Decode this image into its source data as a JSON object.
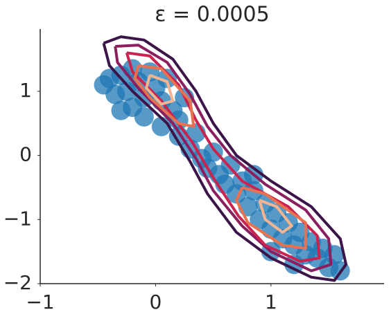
{
  "chart_data": {
    "type": "scatter",
    "title": "ε = 0.0005",
    "xlim": [
      -1,
      1.98
    ],
    "ylim": [
      -2,
      1.97
    ],
    "xticks": [
      {
        "value": -1,
        "label": "−1"
      },
      0,
      1
    ],
    "yticks": [
      {
        "value": -2,
        "label": "−2"
      },
      {
        "value": -1,
        "label": "−1"
      },
      0,
      1
    ],
    "color": "#1f77b4",
    "x": [
      -0.45,
      -0.4,
      -0.35,
      -0.3,
      -0.25,
      -0.2,
      -0.15,
      -0.1,
      -0.05,
      0,
      0.05,
      0.1,
      0.15,
      0.2,
      0.25,
      -0.3,
      -0.2,
      -0.1,
      0.05,
      0.2,
      0.3,
      0.35,
      0.4,
      0.45,
      0.5,
      0.55,
      0.6,
      0.65,
      0.7,
      0.75,
      0.8,
      0.85,
      0.9,
      0.95,
      1.0,
      1.05,
      1.1,
      1.15,
      1.2,
      1.25,
      1.3,
      1.35,
      1.4,
      1.45,
      1.5,
      1.55,
      1.6,
      0.85,
      1.0,
      1.2
    ],
    "values": [
      1.1,
      1.2,
      0.95,
      1.25,
      1.0,
      0.75,
      1.15,
      0.9,
      1.3,
      1.05,
      0.85,
      1.2,
      0.7,
      0.55,
      0.9,
      0.7,
      1.35,
      0.6,
      0.45,
      0.3,
      0.1,
      0.35,
      -0.05,
      -0.2,
      0.05,
      -0.3,
      -0.45,
      -0.15,
      -0.6,
      -0.4,
      -0.8,
      -0.55,
      -1.0,
      -0.75,
      -1.15,
      -0.9,
      -1.3,
      -1.05,
      -1.4,
      -1.2,
      -1.55,
      -1.35,
      -1.6,
      -1.45,
      -1.75,
      -1.55,
      -1.8,
      -0.3,
      -1.5,
      -1.7
    ],
    "contours": [
      {
        "color": "#3b1549",
        "x": [
          -0.45,
          -0.3,
          -0.1,
          0.15,
          0.35,
          0.5,
          0.7,
          1.0,
          1.35,
          1.6,
          1.65,
          1.55,
          1.35,
          1.0,
          0.7,
          0.45,
          0.3,
          0.1,
          -0.2,
          -0.4,
          -0.45
        ],
        "y": [
          1.75,
          1.85,
          1.8,
          1.5,
          1.0,
          0.5,
          0.0,
          -0.4,
          -0.8,
          -1.3,
          -1.7,
          -1.95,
          -1.9,
          -1.6,
          -1.2,
          -0.6,
          -0.1,
          0.5,
          1.0,
          1.4,
          1.75
        ]
      },
      {
        "color": "#8a1e5e",
        "x": [
          -0.35,
          -0.15,
          0.1,
          0.3,
          0.45,
          0.65,
          0.95,
          1.3,
          1.5,
          1.52,
          1.35,
          1.0,
          0.75,
          0.5,
          0.35,
          0.15,
          -0.15,
          -0.33,
          -0.35
        ],
        "y": [
          1.7,
          1.72,
          1.45,
          0.95,
          0.45,
          0.0,
          -0.45,
          -0.85,
          -1.3,
          -1.7,
          -1.8,
          -1.5,
          -1.1,
          -0.55,
          -0.05,
          0.5,
          1.05,
          1.45,
          1.7
        ]
      },
      {
        "color": "#c8244f",
        "x": [
          -0.25,
          -0.05,
          0.2,
          0.35,
          0.5,
          0.75,
          1.15,
          1.4,
          1.42,
          1.25,
          0.95,
          0.72,
          0.5,
          0.32,
          0.05,
          -0.2,
          -0.25
        ],
        "y": [
          1.6,
          1.55,
          1.1,
          0.55,
          0.1,
          -0.4,
          -0.8,
          -1.25,
          -1.6,
          -1.65,
          -1.4,
          -0.95,
          -0.35,
          0.2,
          0.85,
          1.3,
          1.6
        ]
      },
      {
        "color": "#e8714f",
        "x": [
          -0.15,
          0.05,
          0.3,
          0.33,
          0.2,
          -0.05,
          -0.18,
          -0.15,
          null,
          0.75,
          0.95,
          1.3,
          1.3,
          1.1,
          0.8,
          0.7,
          0.75
        ],
        "y": [
          1.4,
          1.35,
          0.85,
          0.45,
          0.5,
          0.9,
          1.2,
          1.4,
          null,
          -0.5,
          -0.6,
          -1.05,
          -1.45,
          -1.4,
          -1.05,
          -0.7,
          -0.5
        ]
      },
      {
        "color": "#f2b491",
        "x": [
          -0.05,
          0.1,
          0.15,
          0.05,
          -0.08,
          -0.05,
          null,
          0.9,
          1.05,
          1.18,
          1.1,
          0.95,
          0.9
        ],
        "y": [
          1.25,
          1.15,
          0.85,
          0.8,
          1.05,
          1.25,
          null,
          -0.7,
          -0.8,
          -1.1,
          -1.2,
          -1.0,
          -0.7
        ]
      }
    ]
  }
}
